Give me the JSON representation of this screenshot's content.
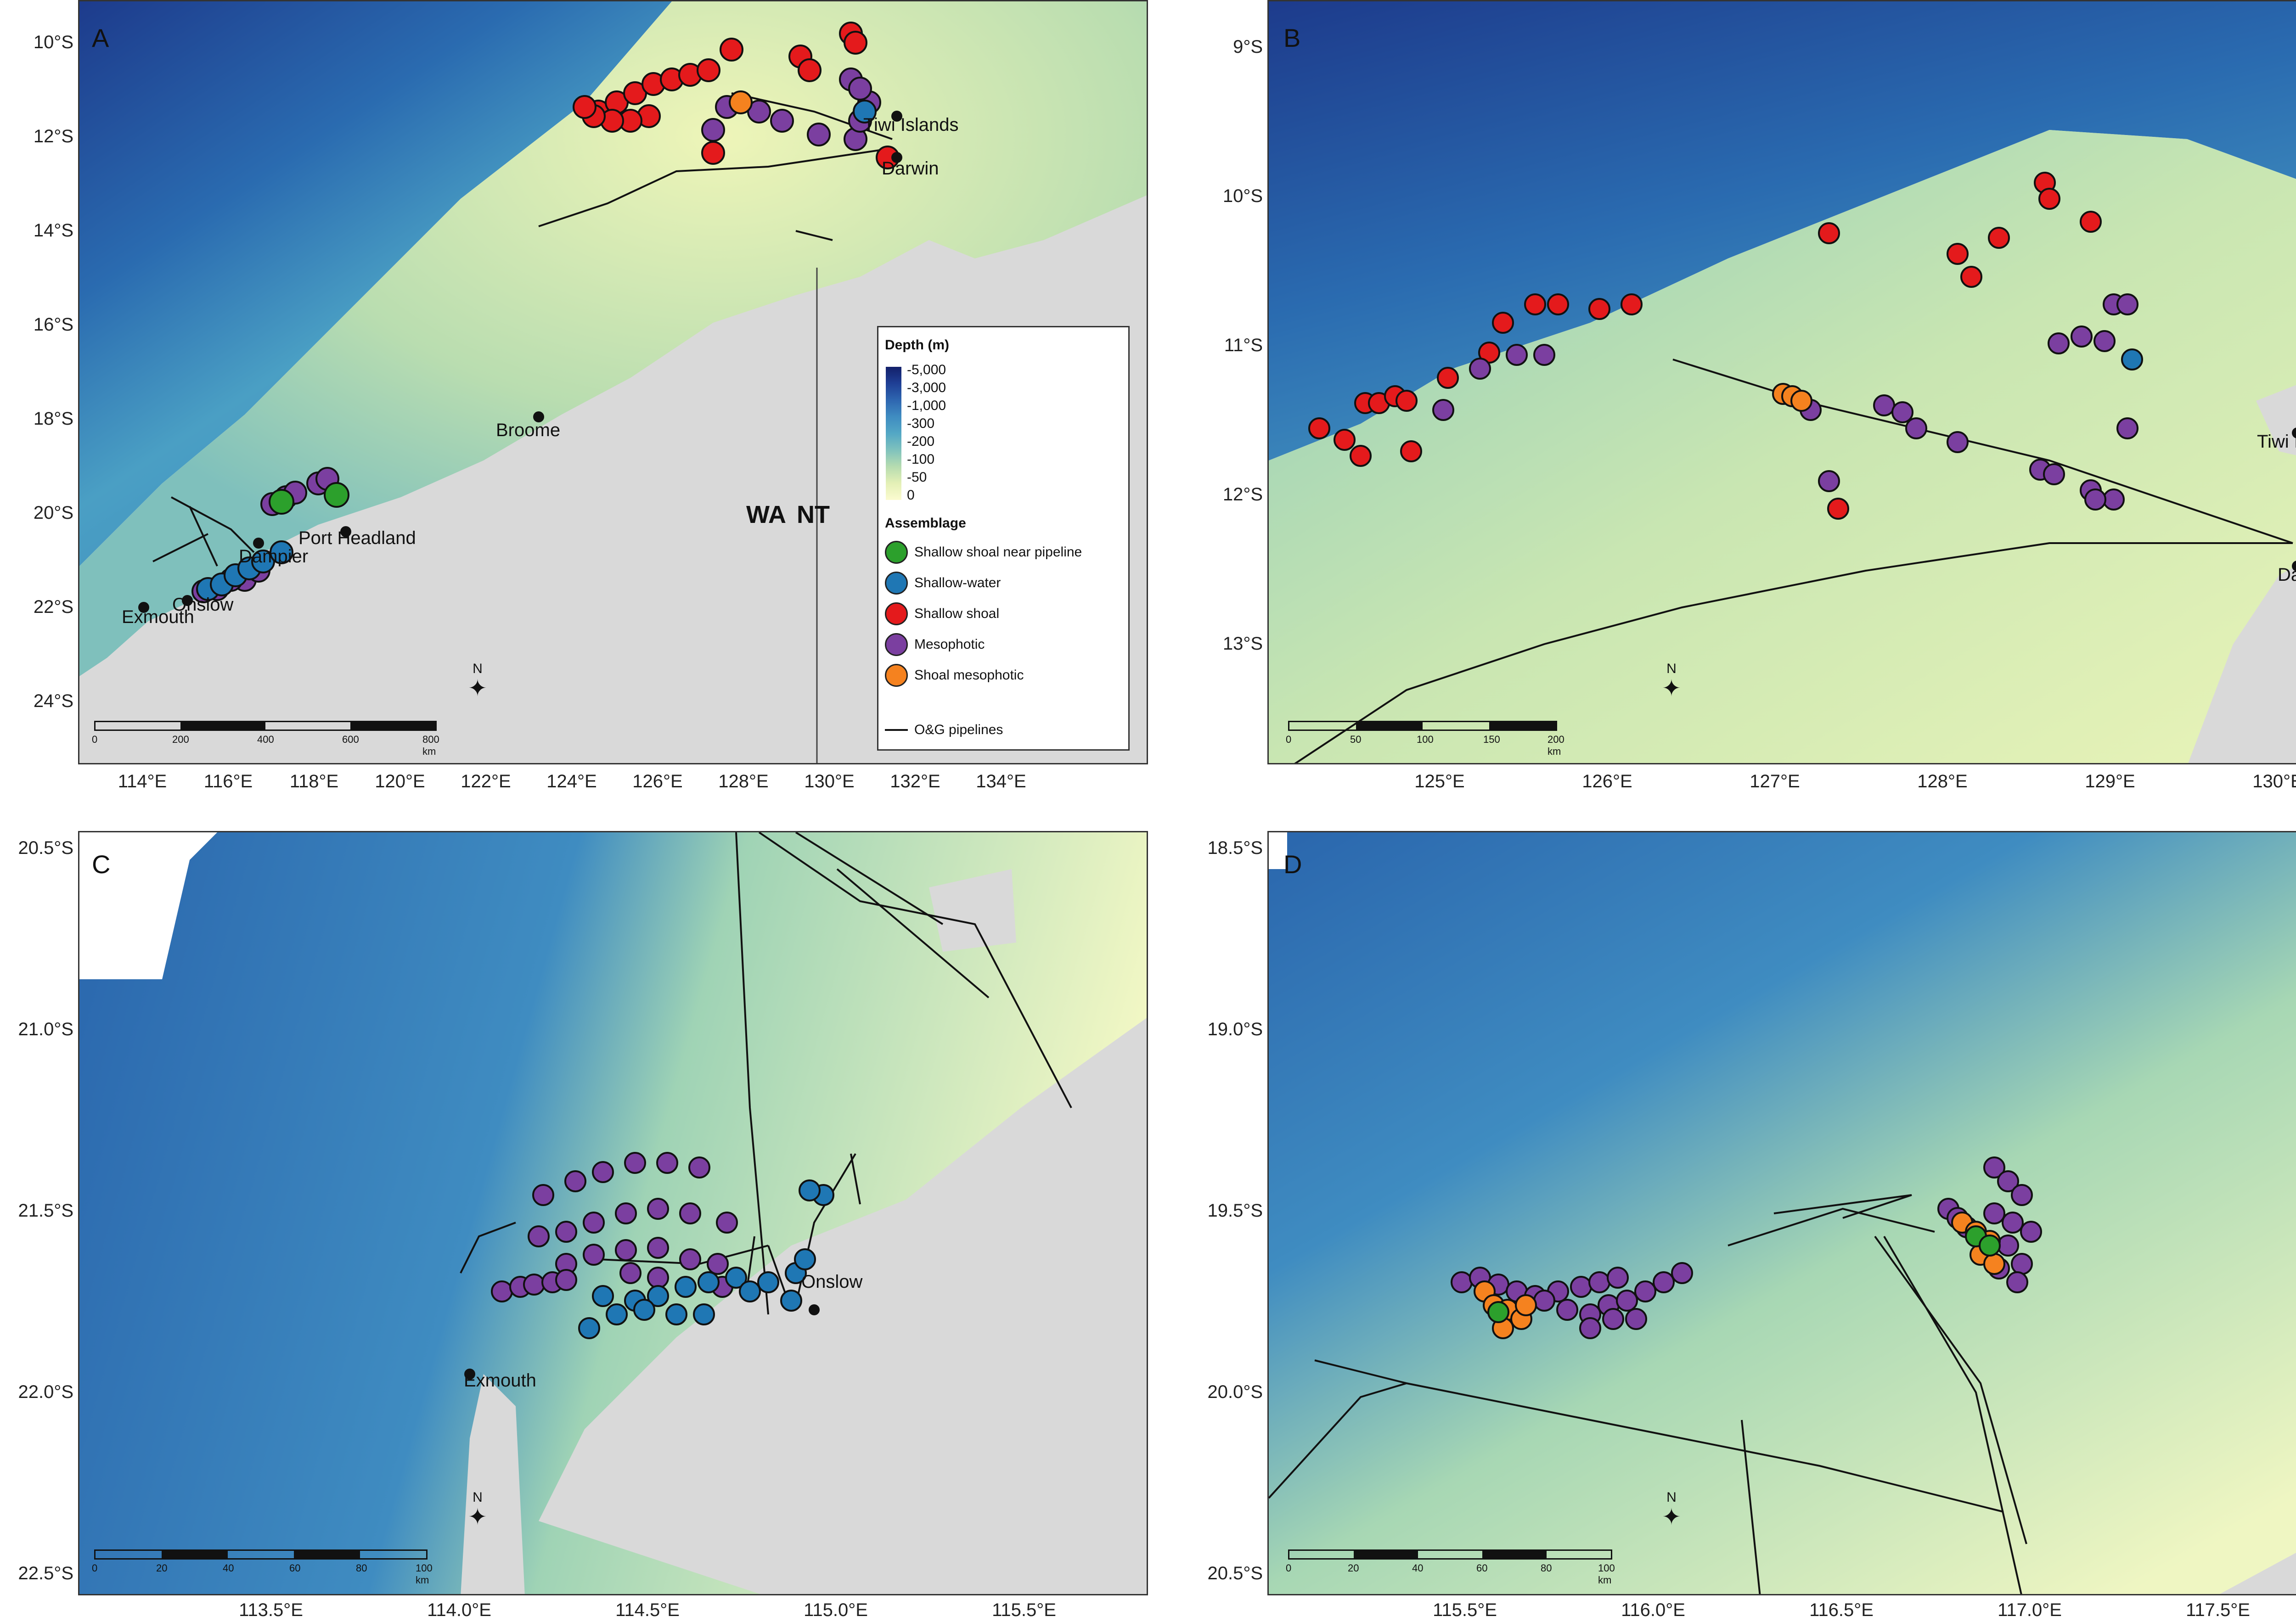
{
  "colors": {
    "shallow_shoal_near_pipeline": "#2ca02c",
    "shallow_water": "#1f77b4",
    "shallow_shoal": "#e41a1c",
    "mesophotic": "#7b3fa0",
    "shoal_mesophotic": "#f5821f",
    "land": "#d9d9d9"
  },
  "legend": {
    "depth_title": "Depth (m)",
    "depth_ticks": [
      "-5,000",
      "-3,000",
      "-1,000",
      "-300",
      "-200",
      "-100",
      "-50",
      "0"
    ],
    "assemblage_title": "Assemblage",
    "items": [
      {
        "label": "Shallow shoal near pipeline",
        "color": "#2ca02c"
      },
      {
        "label": "Shallow-water",
        "color": "#1f77b4"
      },
      {
        "label": "Shallow shoal",
        "color": "#e41a1c"
      },
      {
        "label": "Mesophotic",
        "color": "#7b3fa0"
      },
      {
        "label": "Shoal mesophotic",
        "color": "#f5821f"
      }
    ],
    "pipeline_label": "O&G pipelines"
  },
  "panels": {
    "A": {
      "letter": "A",
      "y_labels": [
        "10°S",
        "12°S",
        "14°S",
        "16°S",
        "18°S",
        "20°S",
        "22°S",
        "24°S"
      ],
      "x_labels": [
        "114°E",
        "116°E",
        "118°E",
        "120°E",
        "122°E",
        "124°E",
        "126°E",
        "128°E",
        "130°E",
        "132°E",
        "134°E"
      ],
      "places": [
        "Tiwi Islands",
        "Darwin",
        "Broome",
        "Port Headland",
        "Dampier",
        "Onslow",
        "Exmouth"
      ],
      "regions": [
        "WA",
        "NT"
      ],
      "north": "N",
      "scale": [
        "0",
        "200",
        "400",
        "600",
        "800 km"
      ]
    },
    "B": {
      "letter": "B",
      "y_labels": [
        "9°S",
        "10°S",
        "11°S",
        "12°S",
        "13°S"
      ],
      "x_labels": [
        "125°E",
        "126°E",
        "127°E",
        "128°E",
        "129°E",
        "130°E"
      ],
      "places": [
        "Tiwi Isla",
        "Darwi"
      ],
      "north": "N",
      "scale": [
        "0",
        "50",
        "100",
        "150",
        "200 km"
      ]
    },
    "C": {
      "letter": "C",
      "y_labels": [
        "20.5°S",
        "21.0°S",
        "21.5°S",
        "22.0°S",
        "22.5°S"
      ],
      "x_labels": [
        "113.5°E",
        "114.0°E",
        "114.5°E",
        "115.0°E",
        "115.5°E"
      ],
      "places": [
        "Onslow",
        "Exmouth"
      ],
      "north": "N",
      "scale": [
        "0",
        "20",
        "40",
        "60",
        "80",
        "100 km"
      ]
    },
    "D": {
      "letter": "D",
      "y_labels": [
        "18.5°S",
        "19.0°S",
        "19.5°S",
        "20.0°S",
        "20.5°S"
      ],
      "x_labels": [
        "115.5°E",
        "116.0°E",
        "116.5°E",
        "117.0°E",
        "117.5°E"
      ],
      "north": "N",
      "scale": [
        "0",
        "20",
        "40",
        "60",
        "80",
        "100 km"
      ]
    }
  }
}
